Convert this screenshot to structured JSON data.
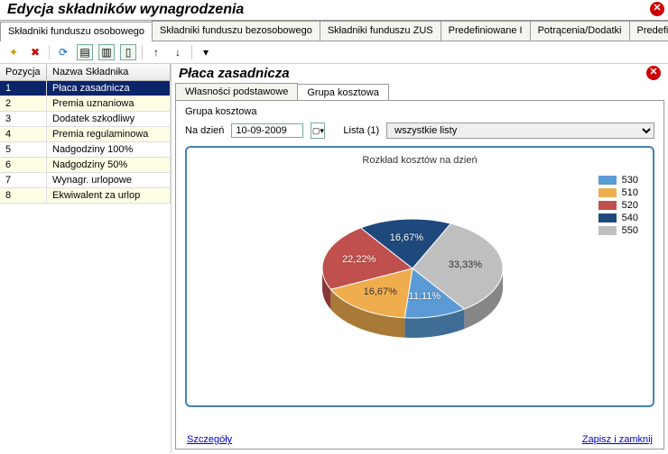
{
  "window": {
    "title": "Edycja składników wynagrodzenia"
  },
  "main_tabs": [
    "Składniki funduszu osobowego",
    "Składniki funduszu bezosobowego",
    "Składniki funduszu ZUS",
    "Predefiniowane I",
    "Potrącenia/Dodatki",
    "Predefinio"
  ],
  "main_tab_active": 0,
  "table": {
    "columns": [
      "Pozycja",
      "Nazwa Składnika"
    ],
    "rows": [
      {
        "pos": "1",
        "name": "Płaca zasadnicza",
        "selected": true
      },
      {
        "pos": "2",
        "name": "Premia uznaniowa"
      },
      {
        "pos": "3",
        "name": "Dodatek szkodliwy"
      },
      {
        "pos": "4",
        "name": "Premia regulaminowa"
      },
      {
        "pos": "5",
        "name": "Nadgodziny 100%"
      },
      {
        "pos": "6",
        "name": "Nadgodziny 50%"
      },
      {
        "pos": "7",
        "name": "Wynagr. urlopowe"
      },
      {
        "pos": "8",
        "name": "Ekwiwalent za urlop"
      }
    ]
  },
  "detail": {
    "title": "Płaca zasadnicza",
    "sub_tabs": [
      "Własności podstawowe",
      "Grupa kosztowa"
    ],
    "sub_tab_active": 1,
    "group_title": "Grupa kosztowa",
    "date_label": "Na dzień",
    "date_value": "10-09-2009",
    "list_label": "Lista (1)",
    "list_value": "wszystkie listy",
    "links": {
      "left": "Szczegóły",
      "right": "Zapisz i zamknij"
    }
  },
  "chart": {
    "type": "pie",
    "title": "Rozkład kosztów na dzień",
    "border_color": "#4682b4",
    "background": "#ffffff",
    "series": [
      {
        "label": "530",
        "value": 11.11,
        "display": "11,11%",
        "color": "#5b9bd5"
      },
      {
        "label": "510",
        "value": 16.67,
        "display": "16,67%",
        "color": "#f0ad4e"
      },
      {
        "label": "520",
        "value": 22.22,
        "display": "22,22%",
        "color": "#c0504d"
      },
      {
        "label": "540",
        "value": 16.67,
        "display": "16,67%",
        "color": "#1f497d"
      },
      {
        "label": "550",
        "value": 33.33,
        "display": "33,33%",
        "color": "#bfbfbf"
      }
    ],
    "legend_order": [
      "530",
      "510",
      "520",
      "540",
      "550"
    ],
    "radius": 100,
    "depth": 22,
    "tilt": 0.55
  }
}
